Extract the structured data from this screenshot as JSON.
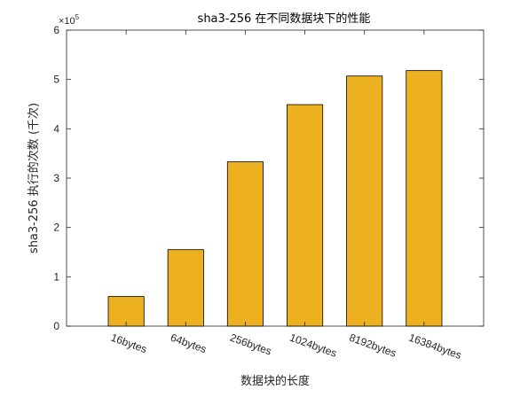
{
  "chart_data": {
    "type": "bar",
    "title": "sha3-256 在不同数据块下的性能",
    "xlabel": "数据块的长度",
    "ylabel": "sha3-256 执行的次数 (千次)",
    "categories": [
      "16bytes",
      "64bytes",
      "256bytes",
      "1024bytes",
      "8192bytes",
      "16384bytes"
    ],
    "values": [
      60000,
      155000,
      333000,
      449000,
      507000,
      518000
    ],
    "ylim": [
      0,
      600000
    ],
    "yticks": [
      0,
      1,
      2,
      3,
      4,
      5,
      6
    ],
    "y_exponent_label": "×10",
    "y_exponent_power": "5",
    "grid": false,
    "bar_color": "#EDB120",
    "edge_color": "#000000"
  }
}
